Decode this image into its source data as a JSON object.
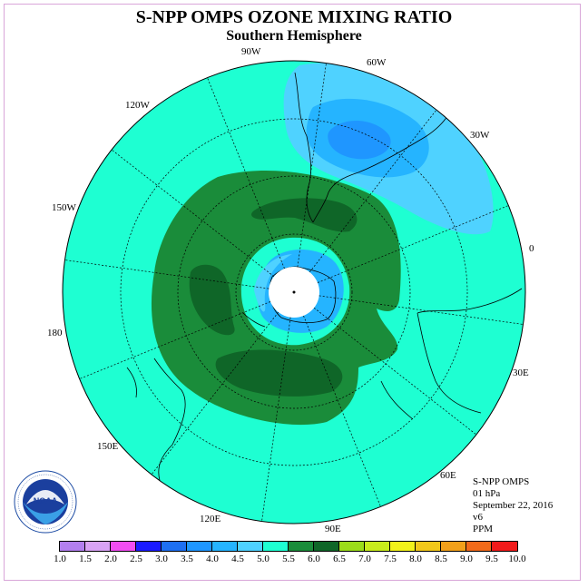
{
  "title": "S-NPP OMPS OZONE MIXING RATIO",
  "subtitle": "Southern Hemisphere",
  "longitude_labels": [
    "90W",
    "60W",
    "30W",
    "0",
    "30E",
    "60E",
    "90E",
    "120E",
    "150E",
    "180",
    "150W",
    "120W"
  ],
  "info": {
    "instrument": "S-NPP OMPS",
    "level": "01 hPa",
    "date": "September 22, 2016",
    "version": "v6",
    "units": "PPM"
  },
  "logo": {
    "name": "noaa-logo",
    "text": "NOAA"
  },
  "colorbar": {
    "ticks": [
      "1.0",
      "1.5",
      "2.0",
      "2.5",
      "3.0",
      "3.5",
      "4.0",
      "4.5",
      "5.0",
      "5.5",
      "6.0",
      "6.5",
      "7.0",
      "7.5",
      "8.0",
      "8.5",
      "9.0",
      "9.5",
      "10.0"
    ],
    "colors": [
      "#b37fef",
      "#d9a3f5",
      "#f24df2",
      "#1a1aff",
      "#1e6ff2",
      "#1f96ff",
      "#25b4ff",
      "#4fd2ff",
      "#1effd2",
      "#1a8c3a",
      "#0f6628",
      "#9bdc1a",
      "#c8ec1c",
      "#f2f21a",
      "#f2c81a",
      "#f2a01a",
      "#f26a1a",
      "#f21a1a",
      "#8c5a3a"
    ]
  },
  "map_colors": {
    "background": "#1effd2",
    "light_blue": "#4fd2ff",
    "mid_blue": "#25b4ff",
    "dark_blue": "#1f96ff",
    "green": "#1a8c3a",
    "dark_green": "#0f6628",
    "pole": "#ffffff"
  }
}
